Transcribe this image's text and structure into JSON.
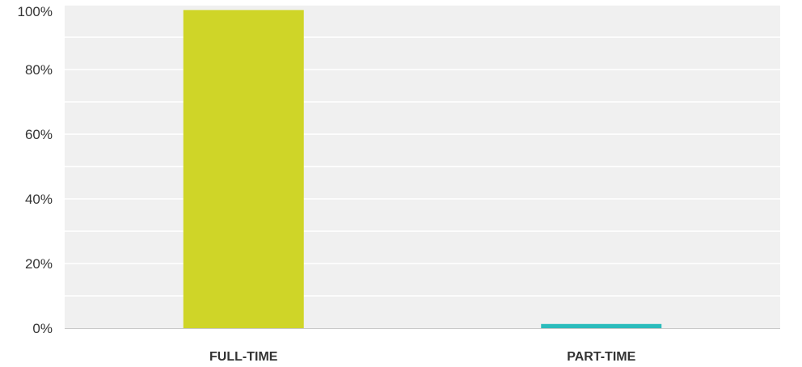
{
  "chart_data": {
    "type": "bar",
    "categories": [
      "FULL-TIME",
      "PART-TIME"
    ],
    "values": [
      98.4,
      1.3
    ],
    "ylim": [
      0,
      100
    ],
    "yticks": [
      "0%",
      "20%",
      "40%",
      "60%",
      "80%",
      "100%"
    ],
    "ytick_values": [
      0,
      20,
      40,
      60,
      80,
      100
    ],
    "grid": true,
    "colors": {
      "bars": [
        "#cfd528",
        "#2bbcbc"
      ],
      "plot_background": "#f0f0f0",
      "gridline": "#ffffff",
      "baseline": "#c8c8c8"
    }
  }
}
